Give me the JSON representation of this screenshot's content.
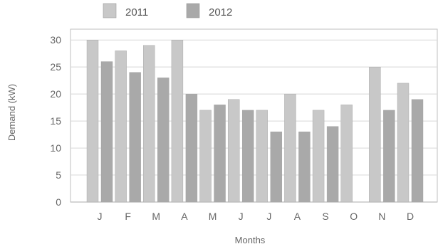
{
  "chart_data": {
    "type": "bar",
    "title": "",
    "xlabel": "Months",
    "ylabel": "Demand (kW)",
    "categories": [
      "J",
      "F",
      "M",
      "A",
      "M",
      "J",
      "J",
      "A",
      "S",
      "O",
      "N",
      "D"
    ],
    "series": [
      {
        "name": "2011",
        "values": [
          30,
          28,
          29,
          30,
          17,
          19,
          17,
          20,
          17,
          18,
          25,
          22
        ],
        "color": "#c8c8c8"
      },
      {
        "name": "2012",
        "values": [
          26,
          24,
          23,
          20,
          18,
          17,
          13,
          13,
          14,
          null,
          17,
          19
        ],
        "color": "#a9a9a9"
      }
    ],
    "yticks": [
      0,
      5,
      10,
      15,
      20,
      25,
      30
    ],
    "ylim": [
      0,
      32
    ],
    "grid": true,
    "legend_position": "top-left"
  }
}
